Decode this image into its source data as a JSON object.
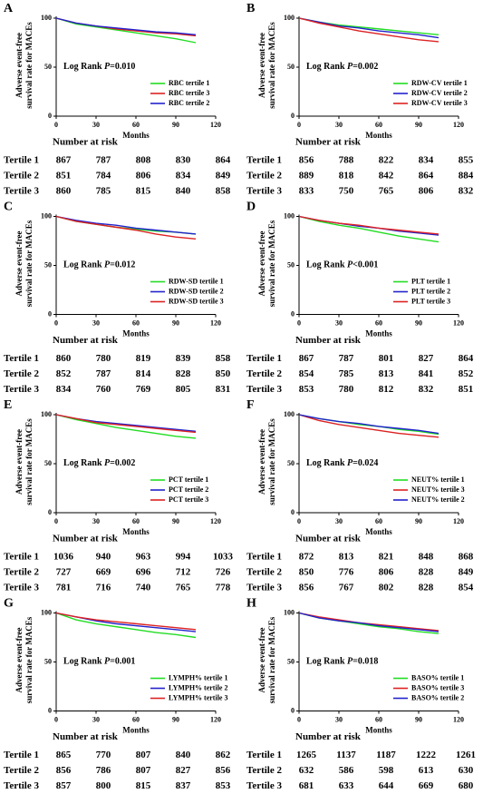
{
  "chart_data": [
    {
      "type": "line",
      "label": "A",
      "y_label": [
        "Adverse event-free",
        "survival rate for MACEs"
      ],
      "x_label": "Months",
      "log_rank": {
        "text": "Log Rank ",
        "p": "P",
        "value": "=0.010"
      },
      "x": [
        0,
        15,
        30,
        45,
        60,
        75,
        90,
        105
      ],
      "xlim": [
        0,
        120
      ],
      "ylim": [
        0,
        100
      ],
      "xticks": [
        0,
        30,
        60,
        90,
        120
      ],
      "yticks": [
        0,
        50,
        100
      ],
      "series": [
        {
          "name": "RBC tertile 1",
          "color": "#22dd22",
          "values": [
            100,
            94,
            91,
            88,
            85,
            82,
            79,
            75
          ]
        },
        {
          "name": "RBC tertile 3",
          "color": "#dd2222",
          "values": [
            100,
            95,
            92,
            89,
            87,
            85,
            84,
            82
          ]
        },
        {
          "name": "RBC tertile 2",
          "color": "#2222cc",
          "values": [
            100,
            95,
            92,
            90,
            88,
            86,
            85,
            83
          ]
        }
      ],
      "risk_table": {
        "title": "Number at risk",
        "rows": [
          {
            "label": "Tertile 1",
            "values": [
              867,
              787,
              808,
              830,
              864
            ]
          },
          {
            "label": "Tertile 2",
            "values": [
              851,
              784,
              806,
              834,
              849
            ]
          },
          {
            "label": "Tertile 3",
            "values": [
              860,
              785,
              815,
              840,
              858
            ]
          }
        ]
      }
    },
    {
      "type": "line",
      "label": "B",
      "y_label": [
        "Adverse event-free",
        "survival rate for MACEs"
      ],
      "x_label": "Months",
      "log_rank": {
        "text": "Log Rank ",
        "p": "P",
        "value": "=0.002"
      },
      "x": [
        0,
        15,
        30,
        45,
        60,
        75,
        90,
        105
      ],
      "xlim": [
        0,
        120
      ],
      "ylim": [
        0,
        100
      ],
      "xticks": [
        0,
        30,
        60,
        90,
        120
      ],
      "yticks": [
        0,
        50,
        100
      ],
      "series": [
        {
          "name": "RDW-CV tertile 1",
          "color": "#22dd22",
          "values": [
            100,
            96,
            93,
            91,
            89,
            87,
            85,
            83
          ]
        },
        {
          "name": "RDW-CV tertile 2",
          "color": "#2222cc",
          "values": [
            100,
            96,
            92,
            90,
            87,
            85,
            83,
            80
          ]
        },
        {
          "name": "RDW-CV tertile 3",
          "color": "#dd2222",
          "values": [
            100,
            95,
            91,
            87,
            84,
            81,
            78,
            76
          ]
        }
      ],
      "risk_table": {
        "title": "Number at risk",
        "rows": [
          {
            "label": "Tertile 1",
            "values": [
              856,
              788,
              822,
              834,
              855
            ]
          },
          {
            "label": "Tertile 2",
            "values": [
              889,
              818,
              842,
              864,
              884
            ]
          },
          {
            "label": "Tertile 3",
            "values": [
              833,
              750,
              765,
              806,
              832
            ]
          }
        ]
      }
    },
    {
      "type": "line",
      "label": "C",
      "y_label": [
        "Adverse event-free",
        "survival rate for MACEs"
      ],
      "x_label": "Months",
      "log_rank": {
        "text": "Log Rank ",
        "p": "P",
        "value": "=0.012"
      },
      "x": [
        0,
        15,
        30,
        45,
        60,
        75,
        90,
        105
      ],
      "xlim": [
        0,
        120
      ],
      "ylim": [
        0,
        100
      ],
      "xticks": [
        0,
        30,
        60,
        90,
        120
      ],
      "yticks": [
        0,
        50,
        100
      ],
      "series": [
        {
          "name": "RDW-SD tertile 1",
          "color": "#22dd22",
          "values": [
            100,
            95,
            92,
            89,
            87,
            85,
            84,
            82
          ]
        },
        {
          "name": "RDW-SD tertile 2",
          "color": "#2222cc",
          "values": [
            100,
            96,
            93,
            91,
            88,
            86,
            84,
            82
          ]
        },
        {
          "name": "RDW-SD tertile 3",
          "color": "#dd2222",
          "values": [
            100,
            95,
            92,
            89,
            86,
            82,
            79,
            77
          ]
        }
      ],
      "risk_table": {
        "title": "Number at risk",
        "rows": [
          {
            "label": "Tertile 1",
            "values": [
              860,
              780,
              819,
              839,
              858
            ]
          },
          {
            "label": "Tertile 2",
            "values": [
              852,
              787,
              814,
              828,
              850
            ]
          },
          {
            "label": "Tertile 3",
            "values": [
              834,
              760,
              769,
              805,
              831
            ]
          }
        ]
      }
    },
    {
      "type": "line",
      "label": "D",
      "y_label": [
        "Adverse event-free",
        "survival rate for MACEs"
      ],
      "x_label": "Months",
      "log_rank": {
        "text": "Log Rank ",
        "p": "P",
        "value": "<0.001"
      },
      "x": [
        0,
        15,
        30,
        45,
        60,
        75,
        90,
        105
      ],
      "xlim": [
        0,
        120
      ],
      "ylim": [
        0,
        100
      ],
      "xticks": [
        0,
        30,
        60,
        90,
        120
      ],
      "yticks": [
        0,
        50,
        100
      ],
      "series": [
        {
          "name": "PLT tertile 1",
          "color": "#22dd22",
          "values": [
            100,
            95,
            91,
            88,
            84,
            80,
            77,
            74
          ]
        },
        {
          "name": "PLT tertile 2",
          "color": "#2222cc",
          "values": [
            100,
            96,
            93,
            90,
            88,
            85,
            83,
            81
          ]
        },
        {
          "name": "PLT tertile 3",
          "color": "#dd2222",
          "values": [
            100,
            96,
            93,
            91,
            88,
            86,
            84,
            82
          ]
        }
      ],
      "risk_table": {
        "title": "Number at risk",
        "rows": [
          {
            "label": "Tertile 1",
            "values": [
              867,
              787,
              801,
              827,
              864
            ]
          },
          {
            "label": "Tertile 2",
            "values": [
              854,
              785,
              813,
              841,
              852
            ]
          },
          {
            "label": "Tertile 3",
            "values": [
              853,
              780,
              812,
              832,
              851
            ]
          }
        ]
      }
    },
    {
      "type": "line",
      "label": "E",
      "y_label": [
        "Adverse event-free",
        "survival rate for MACEs"
      ],
      "x_label": "Months",
      "log_rank": {
        "text": "Log Rank ",
        "p": "P",
        "value": "=0.002"
      },
      "x": [
        0,
        15,
        30,
        45,
        60,
        75,
        90,
        105
      ],
      "xlim": [
        0,
        120
      ],
      "ylim": [
        0,
        100
      ],
      "xticks": [
        0,
        30,
        60,
        90,
        120
      ],
      "yticks": [
        0,
        50,
        100
      ],
      "series": [
        {
          "name": "PCT tertile 1",
          "color": "#22dd22",
          "values": [
            100,
            95,
            91,
            87,
            84,
            81,
            78,
            76
          ]
        },
        {
          "name": "PCT tertile 2",
          "color": "#2222cc",
          "values": [
            100,
            96,
            93,
            91,
            89,
            87,
            85,
            83
          ]
        },
        {
          "name": "PCT tertile 3",
          "color": "#dd2222",
          "values": [
            100,
            96,
            92,
            90,
            88,
            86,
            84,
            82
          ]
        }
      ],
      "risk_table": {
        "title": "Number at risk",
        "rows": [
          {
            "label": "Tertile 1",
            "values": [
              1036,
              940,
              963,
              994,
              1033
            ]
          },
          {
            "label": "Tertile 2",
            "values": [
              727,
              669,
              696,
              712,
              726
            ]
          },
          {
            "label": "Tertile 3",
            "values": [
              781,
              716,
              740,
              765,
              778
            ]
          }
        ]
      }
    },
    {
      "type": "line",
      "label": "F",
      "y_label": [
        "Adverse event-free",
        "survival rate for MACEs"
      ],
      "x_label": "Months",
      "log_rank": {
        "text": "Log Rank ",
        "p": "P",
        "value": "=0.024"
      },
      "x": [
        0,
        15,
        30,
        45,
        60,
        75,
        90,
        105
      ],
      "xlim": [
        0,
        120
      ],
      "ylim": [
        0,
        100
      ],
      "xticks": [
        0,
        30,
        60,
        90,
        120
      ],
      "yticks": [
        0,
        50,
        100
      ],
      "series": [
        {
          "name": "NEUT% tertile 1",
          "color": "#22dd22",
          "values": [
            100,
            96,
            93,
            90,
            88,
            85,
            83,
            80
          ]
        },
        {
          "name": "NEUT% tertile 3",
          "color": "#dd2222",
          "values": [
            100,
            94,
            90,
            87,
            84,
            81,
            79,
            77
          ]
        },
        {
          "name": "NEUT% tertile 2",
          "color": "#2222cc",
          "values": [
            100,
            96,
            93,
            91,
            88,
            86,
            84,
            81
          ]
        }
      ],
      "risk_table": {
        "title": "Number at risk",
        "rows": [
          {
            "label": "Tertile 1",
            "values": [
              872,
              813,
              821,
              848,
              868
            ]
          },
          {
            "label": "Tertile 2",
            "values": [
              850,
              776,
              806,
              828,
              849
            ]
          },
          {
            "label": "Tertile 3",
            "values": [
              856,
              767,
              802,
              828,
              854
            ]
          }
        ]
      }
    },
    {
      "type": "line",
      "label": "G",
      "y_label": [
        "Adverse event-free",
        "survival rate for MACEs"
      ],
      "x_label": "Months",
      "log_rank": {
        "text": "Log Rank ",
        "p": "P",
        "value": "=0.001"
      },
      "x": [
        0,
        15,
        30,
        45,
        60,
        75,
        90,
        105
      ],
      "xlim": [
        0,
        120
      ],
      "ylim": [
        0,
        100
      ],
      "xticks": [
        0,
        30,
        60,
        90,
        120
      ],
      "yticks": [
        0,
        50,
        100
      ],
      "series": [
        {
          "name": "LYMPH% tertile 1",
          "color": "#22dd22",
          "values": [
            100,
            93,
            89,
            86,
            83,
            80,
            78,
            75
          ]
        },
        {
          "name": "LYMPH% tertile 2",
          "color": "#2222cc",
          "values": [
            100,
            96,
            92,
            89,
            87,
            85,
            83,
            81
          ]
        },
        {
          "name": "LYMPH% tertile 3",
          "color": "#dd2222",
          "values": [
            100,
            96,
            93,
            91,
            89,
            87,
            85,
            83
          ]
        }
      ],
      "risk_table": {
        "title": "Number at risk",
        "rows": [
          {
            "label": "Tertile 1",
            "values": [
              865,
              770,
              807,
              840,
              862
            ]
          },
          {
            "label": "Tertile 2",
            "values": [
              856,
              786,
              807,
              827,
              856
            ]
          },
          {
            "label": "Tertile 3",
            "values": [
              857,
              800,
              815,
              837,
              853
            ]
          }
        ]
      }
    },
    {
      "type": "line",
      "label": "H",
      "y_label": [
        "Adverse event-free",
        "survival rate for MACEs"
      ],
      "x_label": "Months",
      "log_rank": {
        "text": "Log Rank ",
        "p": "P",
        "value": "=0.018"
      },
      "x": [
        0,
        15,
        30,
        45,
        60,
        75,
        90,
        105
      ],
      "xlim": [
        0,
        120
      ],
      "ylim": [
        0,
        100
      ],
      "xticks": [
        0,
        30,
        60,
        90,
        120
      ],
      "yticks": [
        0,
        50,
        100
      ],
      "series": [
        {
          "name": "BASO% tertile 1",
          "color": "#22dd22",
          "values": [
            100,
            95,
            92,
            89,
            86,
            84,
            81,
            79
          ]
        },
        {
          "name": "BASO% tertile 3",
          "color": "#dd2222",
          "values": [
            100,
            96,
            93,
            90,
            88,
            86,
            84,
            82
          ]
        },
        {
          "name": "BASO% tertile 2",
          "color": "#2222cc",
          "values": [
            100,
            95,
            92,
            90,
            87,
            85,
            83,
            81
          ]
        }
      ],
      "risk_table": {
        "title": "Number at risk",
        "rows": [
          {
            "label": "Tertile 1",
            "values": [
              1265,
              1137,
              1187,
              1222,
              1261
            ]
          },
          {
            "label": "Tertile 2",
            "values": [
              632,
              586,
              598,
              613,
              630
            ]
          },
          {
            "label": "Tertile 3",
            "values": [
              681,
              633,
              644,
              669,
              680
            ]
          }
        ]
      }
    }
  ]
}
